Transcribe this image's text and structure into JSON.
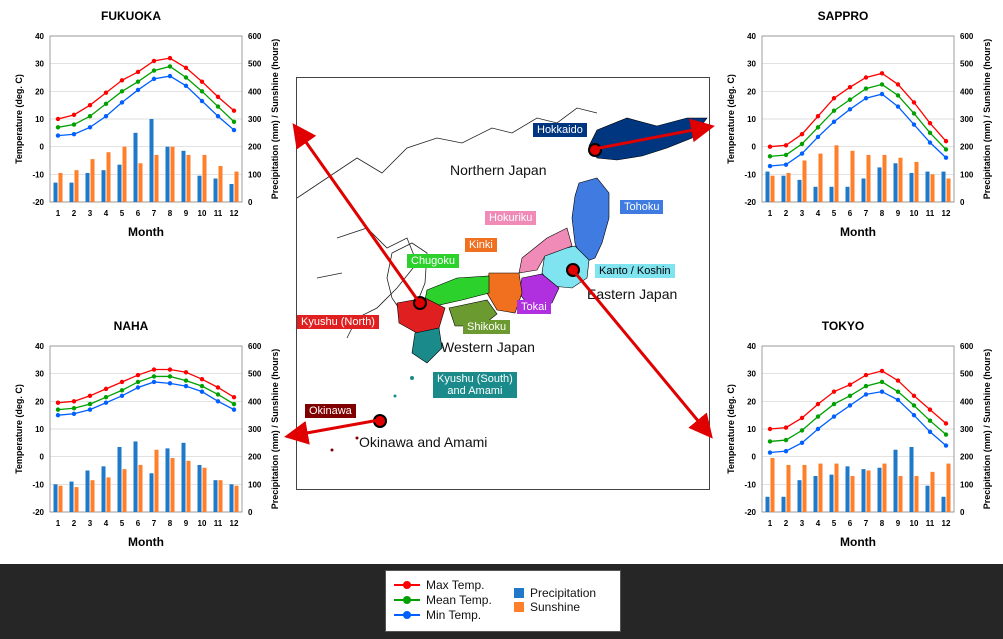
{
  "chart_data": [
    {
      "type": "bar",
      "title": "FUKUOKA",
      "x": [
        1,
        2,
        3,
        4,
        5,
        6,
        7,
        8,
        9,
        10,
        11,
        12
      ],
      "xlabel": "Month",
      "ylabel": "Temperature (deg. C)",
      "y2label": "Precipitation (mm) / Sunshine (hours)",
      "ylim": [
        -20,
        40
      ],
      "y2lim": [
        0,
        600
      ],
      "series": [
        {
          "name": "Max Temp.",
          "kind": "line",
          "axis": "y",
          "color": "#ff0000",
          "values": [
            10,
            11.5,
            15,
            19.5,
            24,
            27,
            31,
            32,
            28.5,
            23.5,
            18,
            13
          ]
        },
        {
          "name": "Mean Temp.",
          "kind": "line",
          "axis": "y",
          "color": "#00a000",
          "values": [
            7,
            8,
            11,
            15.5,
            20,
            23.5,
            27.5,
            29,
            25,
            20,
            14.5,
            9
          ]
        },
        {
          "name": "Min Temp.",
          "kind": "line",
          "axis": "y",
          "color": "#0060ff",
          "values": [
            4,
            4.5,
            7,
            11,
            16,
            20.5,
            24.5,
            25.5,
            22,
            16.5,
            11,
            6
          ]
        },
        {
          "name": "Precipitation",
          "kind": "bar",
          "axis": "y2",
          "color": "#1f78c8",
          "values": [
            70,
            70,
            105,
            115,
            135,
            250,
            300,
            200,
            185,
            95,
            85,
            65
          ]
        },
        {
          "name": "Sunshine",
          "kind": "bar",
          "axis": "y2",
          "color": "#ff7f2a",
          "values": [
            105,
            115,
            155,
            180,
            200,
            140,
            170,
            200,
            170,
            170,
            130,
            110
          ]
        }
      ]
    },
    {
      "type": "bar",
      "title": "SAPPRO",
      "x": [
        1,
        2,
        3,
        4,
        5,
        6,
        7,
        8,
        9,
        10,
        11,
        12
      ],
      "xlabel": "Month",
      "ylabel": "Temperature (deg. C)",
      "y2label": "Precipitation (mm) / Sunshine (hours)",
      "ylim": [
        -20,
        40
      ],
      "y2lim": [
        0,
        600
      ],
      "series": [
        {
          "name": "Max Temp.",
          "kind": "line",
          "axis": "y",
          "color": "#ff0000",
          "values": [
            0,
            0.5,
            4.5,
            11,
            17.5,
            21.5,
            25,
            26.5,
            22.5,
            16,
            8.5,
            2
          ]
        },
        {
          "name": "Mean Temp.",
          "kind": "line",
          "axis": "y",
          "color": "#00a000",
          "values": [
            -3.5,
            -3,
            1,
            7,
            13,
            17,
            21,
            22.5,
            18.5,
            12,
            5,
            -1
          ]
        },
        {
          "name": "Min Temp.",
          "kind": "line",
          "axis": "y",
          "color": "#0060ff",
          "values": [
            -7,
            -6.5,
            -2.5,
            3.5,
            9,
            13.5,
            17.5,
            19,
            14.5,
            8,
            1.5,
            -4
          ]
        },
        {
          "name": "Precipitation",
          "kind": "bar",
          "axis": "y2",
          "color": "#1f78c8",
          "values": [
            110,
            95,
            80,
            55,
            55,
            55,
            85,
            125,
            140,
            105,
            110,
            110
          ]
        },
        {
          "name": "Sunshine",
          "kind": "bar",
          "axis": "y2",
          "color": "#ff7f2a",
          "values": [
            95,
            105,
            150,
            175,
            205,
            185,
            170,
            170,
            160,
            145,
            100,
            85
          ]
        }
      ]
    },
    {
      "type": "bar",
      "title": "NAHA",
      "x": [
        1,
        2,
        3,
        4,
        5,
        6,
        7,
        8,
        9,
        10,
        11,
        12
      ],
      "xlabel": "Month",
      "ylabel": "Temperature (deg. C)",
      "y2label": "Precipitation (mm) / Sunshine (hours)",
      "ylim": [
        -20,
        40
      ],
      "y2lim": [
        0,
        600
      ],
      "series": [
        {
          "name": "Max Temp.",
          "kind": "line",
          "axis": "y",
          "color": "#ff0000",
          "values": [
            19.5,
            20,
            22,
            24.5,
            27,
            29.5,
            31.5,
            31.5,
            30.5,
            28,
            25,
            21.5
          ]
        },
        {
          "name": "Mean Temp.",
          "kind": "line",
          "axis": "y",
          "color": "#00a000",
          "values": [
            17,
            17.5,
            19,
            21.5,
            24,
            27,
            29,
            29,
            27.5,
            25.5,
            22.5,
            19
          ]
        },
        {
          "name": "Min Temp.",
          "kind": "line",
          "axis": "y",
          "color": "#0060ff",
          "values": [
            15,
            15.5,
            17,
            19.5,
            22,
            25,
            27,
            26.5,
            25.5,
            23.5,
            20,
            17
          ]
        },
        {
          "name": "Precipitation",
          "kind": "bar",
          "axis": "y2",
          "color": "#1f78c8",
          "values": [
            100,
            110,
            150,
            165,
            235,
            255,
            140,
            230,
            250,
            170,
            115,
            100
          ]
        },
        {
          "name": "Sunshine",
          "kind": "bar",
          "axis": "y2",
          "color": "#ff7f2a",
          "values": [
            95,
            90,
            115,
            125,
            155,
            170,
            225,
            195,
            185,
            160,
            115,
            95
          ]
        }
      ]
    },
    {
      "type": "bar",
      "title": "TOKYO",
      "x": [
        1,
        2,
        3,
        4,
        5,
        6,
        7,
        8,
        9,
        10,
        11,
        12
      ],
      "xlabel": "Month",
      "ylabel": "Temperature (deg. C)",
      "y2label": "Precipitation (mm) / Sunshine (hours)",
      "ylim": [
        -20,
        40
      ],
      "y2lim": [
        0,
        600
      ],
      "series": [
        {
          "name": "Max Temp.",
          "kind": "line",
          "axis": "y",
          "color": "#ff0000",
          "values": [
            10,
            10.5,
            14,
            19,
            23.5,
            26,
            29.5,
            31,
            27.5,
            22,
            17,
            12
          ]
        },
        {
          "name": "Mean Temp.",
          "kind": "line",
          "axis": "y",
          "color": "#00a000",
          "values": [
            5.5,
            6,
            9.5,
            14.5,
            19,
            22,
            25.5,
            27,
            23.5,
            18.5,
            13,
            8
          ]
        },
        {
          "name": "Min Temp.",
          "kind": "line",
          "axis": "y",
          "color": "#0060ff",
          "values": [
            1.5,
            2,
            5,
            10,
            14.5,
            18.5,
            22.5,
            23.5,
            20.5,
            15,
            9,
            4
          ]
        },
        {
          "name": "Precipitation",
          "kind": "bar",
          "axis": "y2",
          "color": "#1f78c8",
          "values": [
            55,
            55,
            115,
            130,
            135,
            165,
            155,
            160,
            225,
            235,
            95,
            55
          ]
        },
        {
          "name": "Sunshine",
          "kind": "bar",
          "axis": "y2",
          "color": "#ff7f2a",
          "values": [
            195,
            170,
            170,
            175,
            175,
            130,
            150,
            175,
            130,
            130,
            145,
            175
          ]
        }
      ]
    }
  ],
  "map": {
    "regions": [
      {
        "name": "Hokkaido",
        "color": "#003580"
      },
      {
        "name": "Tohoku",
        "color": "#3f7be0"
      },
      {
        "name": "Hokuriku",
        "color": "#f08bb8"
      },
      {
        "name": "Kinki",
        "color": "#f07020"
      },
      {
        "name": "Chugoku",
        "color": "#2cd12c"
      },
      {
        "name": "Kanto / Koshin",
        "color": "#7fe3f0"
      },
      {
        "name": "Kyushu (North)",
        "color": "#e02020"
      },
      {
        "name": "Tokai",
        "color": "#b030e0"
      },
      {
        "name": "Shikoku",
        "color": "#6b9a30"
      },
      {
        "name": "Kyushu (South)\nand Amami",
        "color": "#1a8a8a"
      },
      {
        "name": "Okinawa",
        "color": "#800000"
      }
    ],
    "zones": [
      "Northern Japan",
      "Eastern Japan",
      "Western Japan",
      "Okinawa and Amami"
    ]
  },
  "legend": {
    "items": [
      {
        "label": "Max Temp.",
        "color": "#ff0000",
        "kind": "line"
      },
      {
        "label": "Mean Temp.",
        "color": "#00a000",
        "kind": "line"
      },
      {
        "label": "Min Temp.",
        "color": "#0060ff",
        "kind": "line"
      },
      {
        "label": "Precipitation",
        "color": "#1f78c8",
        "kind": "bar"
      },
      {
        "label": "Sunshine",
        "color": "#ff7f2a",
        "kind": "bar"
      }
    ]
  }
}
